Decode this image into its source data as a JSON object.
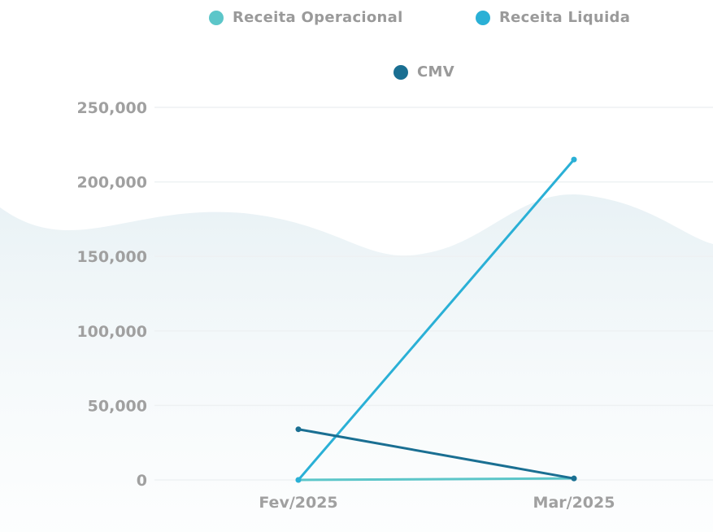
{
  "colors": {
    "receita_operacional": "#5cc6c9",
    "receita_liquida": "#2ab0d6",
    "cmv": "#1a6f92",
    "tick_text": "#a0a0a0",
    "grid": "#eef1f3"
  },
  "chart_data": {
    "type": "line",
    "x": [
      "Fev/2025",
      "Mar/2025"
    ],
    "series": [
      {
        "name": "Receita Operacional",
        "values": [
          0,
          1000
        ]
      },
      {
        "name": "Receita Liquida",
        "values": [
          0,
          215000
        ]
      },
      {
        "name": "CMV",
        "values": [
          34000,
          1000
        ]
      }
    ],
    "ylim": [
      0,
      250000
    ],
    "yticks": [
      "250,000",
      "200,000",
      "150,000",
      "100,000",
      "50,000",
      "0"
    ],
    "ytick_values": [
      250000,
      200000,
      150000,
      100000,
      50000,
      0
    ],
    "grid": true,
    "legend_position": "top"
  }
}
